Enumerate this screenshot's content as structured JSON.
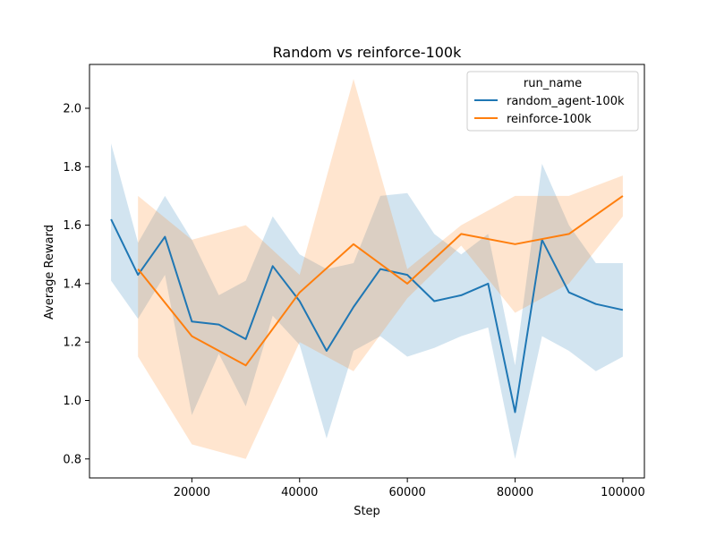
{
  "chart_data": {
    "type": "line",
    "title": "Random vs reinforce-100k",
    "xlabel": "Step",
    "ylabel": "Average Reward",
    "xlim": [
      1000,
      104000
    ],
    "ylim": [
      0.735,
      2.15
    ],
    "xticks": [
      20000,
      40000,
      60000,
      80000,
      100000
    ],
    "xtick_labels": [
      "20000",
      "40000",
      "60000",
      "80000",
      "100000"
    ],
    "yticks": [
      0.8,
      1.0,
      1.2,
      1.4,
      1.6,
      1.8,
      2.0
    ],
    "ytick_labels": [
      "0.8",
      "1.0",
      "1.2",
      "1.4",
      "1.6",
      "1.8",
      "2.0"
    ],
    "grid": false,
    "legend": {
      "title": "run_name",
      "placement": "top-right"
    },
    "series": [
      {
        "name": "random_agent-100k",
        "color": "#1f77b4",
        "x": [
          5000,
          10000,
          15000,
          20000,
          25000,
          30000,
          35000,
          40000,
          45000,
          50000,
          55000,
          60000,
          65000,
          70000,
          75000,
          80000,
          85000,
          90000,
          95000,
          100000
        ],
        "y": [
          1.62,
          1.43,
          1.56,
          1.27,
          1.26,
          1.21,
          1.46,
          1.34,
          1.17,
          1.32,
          1.45,
          1.43,
          1.34,
          1.36,
          1.4,
          0.96,
          1.55,
          1.37,
          1.33,
          1.31
        ],
        "lower": [
          1.41,
          1.28,
          1.43,
          0.95,
          1.16,
          0.98,
          1.29,
          1.19,
          0.87,
          1.17,
          1.22,
          1.15,
          1.18,
          1.22,
          1.25,
          0.8,
          1.22,
          1.17,
          1.1,
          1.15
        ],
        "upper": [
          1.88,
          1.54,
          1.7,
          1.55,
          1.36,
          1.41,
          1.63,
          1.5,
          1.45,
          1.47,
          1.7,
          1.71,
          1.57,
          1.5,
          1.57,
          1.12,
          1.81,
          1.6,
          1.47,
          1.47
        ]
      },
      {
        "name": "reinforce-100k",
        "color": "#ff7f0e",
        "x": [
          10000,
          20000,
          30000,
          40000,
          50000,
          60000,
          70000,
          80000,
          90000,
          100000
        ],
        "y": [
          1.45,
          1.22,
          1.12,
          1.37,
          1.535,
          1.4,
          1.57,
          1.535,
          1.57,
          1.7
        ],
        "lower": [
          1.15,
          0.85,
          0.8,
          1.2,
          1.1,
          1.35,
          1.53,
          1.3,
          1.4,
          1.63
        ],
        "upper": [
          1.7,
          1.55,
          1.6,
          1.43,
          2.1,
          1.45,
          1.6,
          1.7,
          1.7,
          1.77
        ]
      }
    ]
  }
}
